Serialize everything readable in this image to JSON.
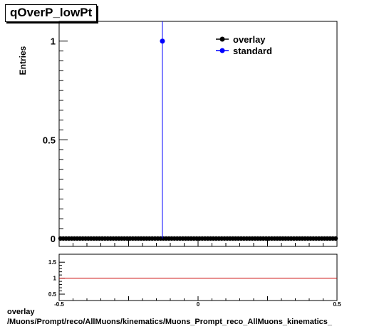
{
  "title": "qOverP_lowPt",
  "footer": {
    "line1": "overlay",
    "line2": "/Muons/Prompt/reco/AllMuons/kinematics/Muons_Prompt_reco_AllMuons_kinematics_"
  },
  "chart_data": [
    {
      "type": "scatter",
      "ylabel": "Entries",
      "xlabel": "",
      "xlim": [
        -0.5,
        0.5
      ],
      "ylim": [
        -0.04,
        1.1
      ],
      "y_ticks": [
        {
          "value": 0,
          "label": "0"
        },
        {
          "value": 0.5,
          "label": "0.5"
        },
        {
          "value": 1,
          "label": "1"
        }
      ],
      "legend": {
        "placement": "top-right",
        "entries": [
          {
            "name": "overlay",
            "color": "#000000"
          },
          {
            "name": "standard",
            "color": "#0000ff"
          }
        ]
      },
      "series": [
        {
          "name": "overlay",
          "color": "#000000",
          "description_points": "zero-valued bins across full range",
          "x_range": [
            -0.5,
            0.5
          ],
          "bins": 100,
          "value": 0
        },
        {
          "name": "standard",
          "color": "#0000ff",
          "points": [
            {
              "x": -0.1283,
              "y": 1
            }
          ]
        }
      ]
    },
    {
      "type": "line",
      "xlim": [
        -0.5,
        0.5
      ],
      "ylim": [
        0.3,
        1.75
      ],
      "x_ticks": [
        {
          "value": -0.5,
          "label": "-0.5"
        },
        {
          "value": 0,
          "label": "0"
        },
        {
          "value": 0.5,
          "label": "0.5"
        }
      ],
      "y_ticks": [
        {
          "value": 0.5,
          "label": "0.5"
        },
        {
          "value": 1,
          "label": "1"
        },
        {
          "value": 1.5,
          "label": "1.5"
        }
      ],
      "reference_line": {
        "y": 1,
        "color": "#cc0000"
      }
    }
  ]
}
